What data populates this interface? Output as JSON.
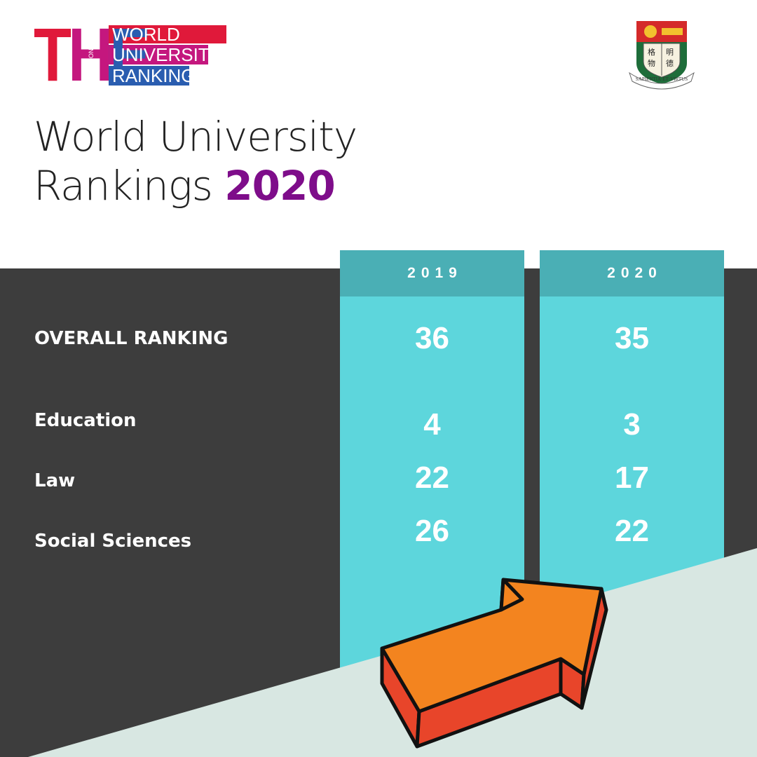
{
  "logo": {
    "mark": "THE",
    "small": [
      "TIMES",
      "HIGHER",
      "EDUCATION"
    ],
    "lines": [
      "WORLD",
      "UNIVERSITY",
      "RANKINGS"
    ]
  },
  "crest": {
    "characters": [
      "格",
      "明",
      "物",
      "德"
    ],
    "motto": "SAPIENTIA·ET·VIRTUS"
  },
  "title": {
    "line1": "World University",
    "line2": "Rankings",
    "year": "2020"
  },
  "table": {
    "columns": [
      "2019",
      "2020"
    ],
    "rows": [
      {
        "label": "OVERALL RANKING",
        "values": [
          36,
          35
        ]
      },
      {
        "label": "Education",
        "values": [
          4,
          3
        ]
      },
      {
        "label": "Law",
        "values": [
          22,
          17
        ]
      },
      {
        "label": "Social Sciences",
        "values": [
          26,
          22
        ]
      }
    ]
  }
}
